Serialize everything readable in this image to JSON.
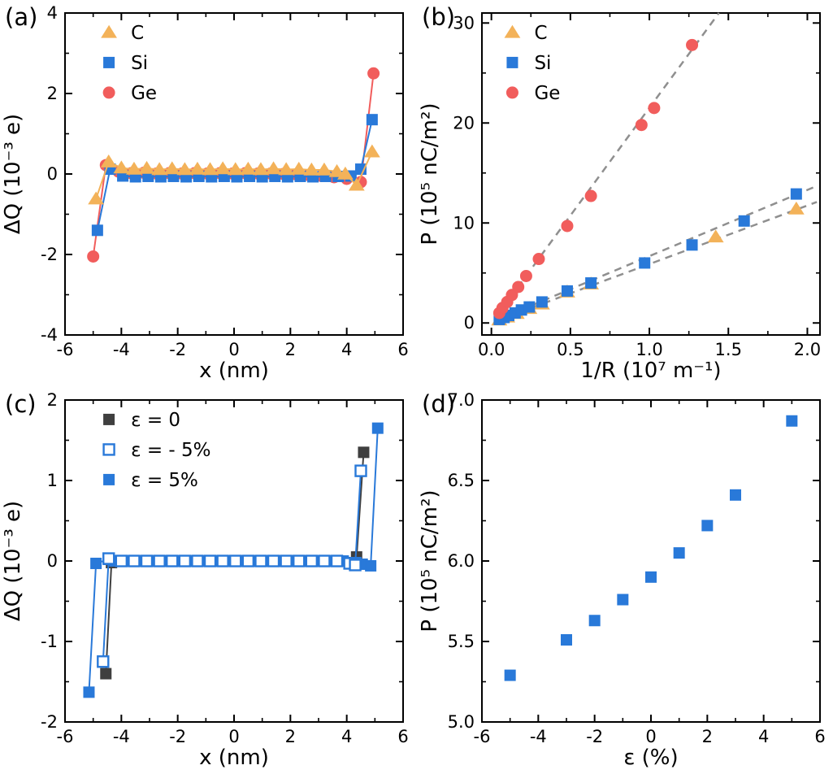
{
  "figure": {
    "background": "#ffffff"
  },
  "colors": {
    "c_orange": "#f3b259",
    "si_blue": "#2979d9",
    "ge_red": "#f15d5c",
    "eps0_dark": "#3f3f3f",
    "fit_gray": "#8f8f8f"
  },
  "chart_data": [
    {
      "id": "a",
      "panel_label": "(a)",
      "type": "scatter",
      "xlabel": "x (nm)",
      "ylabel": "ΔQ (10⁻³ e)",
      "xlim": [
        -6,
        6
      ],
      "ylim": [
        -4,
        4
      ],
      "xticks": [
        -6,
        -4,
        -2,
        0,
        2,
        4,
        6
      ],
      "xtick_labels": [
        "-6",
        "-4",
        "-2",
        "0",
        "2",
        "4",
        "6"
      ],
      "yticks": [
        -4,
        -2,
        0,
        2,
        4
      ],
      "ytick_labels": [
        "-4",
        "-2",
        "0",
        "2",
        "4"
      ],
      "x_minor_step": 1,
      "y_minor_step": 1,
      "legend": {
        "x": 0.13,
        "y": 0.02,
        "items": [
          {
            "label": "C",
            "marker": "triangle",
            "color": "#f3b259"
          },
          {
            "label": "Si",
            "marker": "square",
            "color": "#2979d9"
          },
          {
            "label": "Ge",
            "marker": "circle",
            "color": "#f15d5c"
          }
        ]
      },
      "series": [
        {
          "name": "Ge",
          "marker": "circle",
          "color": "#f15d5c",
          "line": true,
          "x": [
            -5.0,
            -4.55,
            -4.1,
            -3.65,
            -3.2,
            -2.75,
            -2.3,
            -1.85,
            -1.4,
            -0.95,
            -0.5,
            -0.05,
            0.4,
            0.85,
            1.3,
            1.75,
            2.2,
            2.65,
            3.1,
            3.55,
            4.0,
            4.5,
            4.95
          ],
          "y": [
            -2.05,
            0.22,
            0.06,
            0.02,
            0.03,
            0.01,
            0.02,
            0.01,
            0.02,
            0.01,
            0.02,
            0.01,
            0.02,
            0.01,
            0.01,
            0.0,
            -0.01,
            -0.03,
            -0.05,
            -0.08,
            -0.12,
            -0.2,
            2.5
          ]
        },
        {
          "name": "Si",
          "marker": "square",
          "color": "#2979d9",
          "line": true,
          "x": [
            -4.85,
            -4.4,
            -3.95,
            -3.5,
            -3.05,
            -2.6,
            -2.15,
            -1.7,
            -1.25,
            -0.8,
            -0.35,
            0.1,
            0.55,
            1.0,
            1.45,
            1.9,
            2.35,
            2.8,
            3.25,
            3.7,
            4.15,
            4.5,
            4.9
          ],
          "y": [
            -1.4,
            0.12,
            -0.05,
            -0.07,
            -0.06,
            -0.07,
            -0.06,
            -0.07,
            -0.06,
            -0.07,
            -0.06,
            -0.07,
            -0.06,
            -0.07,
            -0.06,
            -0.07,
            -0.06,
            -0.07,
            -0.06,
            -0.06,
            -0.05,
            0.12,
            1.35
          ]
        },
        {
          "name": "C",
          "marker": "triangle",
          "color": "#f3b259",
          "line": true,
          "x": [
            -4.9,
            -4.45,
            -4.0,
            -3.55,
            -3.1,
            -2.65,
            -2.2,
            -1.75,
            -1.3,
            -0.85,
            -0.4,
            0.05,
            0.5,
            0.95,
            1.4,
            1.85,
            2.3,
            2.75,
            3.2,
            3.65,
            3.95,
            4.35,
            4.9
          ],
          "y": [
            -0.62,
            0.3,
            0.15,
            0.12,
            0.14,
            0.11,
            0.13,
            0.11,
            0.12,
            0.11,
            0.13,
            0.11,
            0.12,
            0.11,
            0.13,
            0.11,
            0.12,
            0.1,
            0.1,
            0.06,
            0.0,
            -0.28,
            0.55
          ]
        }
      ]
    },
    {
      "id": "b",
      "panel_label": "(b)",
      "type": "scatter",
      "xlabel": "1/R (10⁷ m⁻¹)",
      "ylabel": "P (10⁵ nC/m²)",
      "xlim": [
        -0.06,
        2.08
      ],
      "ylim": [
        -1.2,
        31
      ],
      "xticks": [
        0,
        0.5,
        1,
        1.5,
        2
      ],
      "xtick_labels": [
        "0.0",
        "0.5",
        "1.0",
        "1.5",
        "2.0"
      ],
      "yticks": [
        0,
        10,
        20,
        30
      ],
      "ytick_labels": [
        "0",
        "10",
        "20",
        "30"
      ],
      "x_minor_step": 0.25,
      "y_minor_step": 5,
      "legend": {
        "x": 0.09,
        "y": 0.02,
        "items": [
          {
            "label": "C",
            "marker": "triangle",
            "color": "#f3b259"
          },
          {
            "label": "Si",
            "marker": "square",
            "color": "#2979d9"
          },
          {
            "label": "Ge",
            "marker": "circle",
            "color": "#f15d5c"
          }
        ]
      },
      "fit_lines": [
        {
          "x1": 0.02,
          "y1": 0.4,
          "x2": 1.44,
          "y2": 31.0,
          "color": "#8f8f8f"
        },
        {
          "x1": 0.02,
          "y1": 0.2,
          "x2": 2.06,
          "y2": 13.7,
          "color": "#8f8f8f"
        },
        {
          "x1": 0.02,
          "y1": 0.15,
          "x2": 2.06,
          "y2": 12.1,
          "color": "#8f8f8f"
        }
      ],
      "series": [
        {
          "name": "C",
          "marker": "triangle",
          "color": "#f3b259",
          "line": false,
          "x": [
            0.05,
            0.1,
            0.16,
            0.24,
            0.32,
            0.48,
            0.63,
            1.42,
            1.93
          ],
          "y": [
            0.3,
            0.6,
            0.95,
            1.45,
            1.9,
            3.1,
            3.9,
            8.6,
            11.4
          ]
        },
        {
          "name": "Si",
          "marker": "square",
          "color": "#2979d9",
          "line": false,
          "x": [
            0.05,
            0.08,
            0.11,
            0.15,
            0.19,
            0.24,
            0.32,
            0.48,
            0.63,
            0.97,
            1.27,
            1.6,
            1.93
          ],
          "y": [
            0.35,
            0.55,
            0.75,
            1.0,
            1.3,
            1.6,
            2.1,
            3.2,
            4.0,
            6.0,
            7.8,
            10.2,
            12.9
          ]
        },
        {
          "name": "Ge",
          "marker": "circle",
          "color": "#f15d5c",
          "line": false,
          "x": [
            0.05,
            0.07,
            0.1,
            0.13,
            0.17,
            0.22,
            0.3,
            0.48,
            0.63,
            0.95,
            1.03,
            1.27
          ],
          "y": [
            1.0,
            1.5,
            2.1,
            2.8,
            3.6,
            4.7,
            6.4,
            9.7,
            12.7,
            19.8,
            21.5,
            27.8
          ]
        }
      ]
    },
    {
      "id": "c",
      "panel_label": "(c)",
      "type": "scatter",
      "xlabel": "x (nm)",
      "ylabel": "ΔQ (10⁻³ e)",
      "xlim": [
        -6,
        6
      ],
      "ylim": [
        -2,
        2
      ],
      "xticks": [
        -6,
        -4,
        -2,
        0,
        2,
        4,
        6
      ],
      "xtick_labels": [
        "-6",
        "-4",
        "-2",
        "0",
        "2",
        "4",
        "6"
      ],
      "yticks": [
        -2,
        -1,
        0,
        1,
        2
      ],
      "ytick_labels": [
        "-2",
        "-1",
        "0",
        "1",
        "2"
      ],
      "x_minor_step": 1,
      "y_minor_step": 0.5,
      "legend": {
        "x": 0.13,
        "y": 0.02,
        "items": [
          {
            "label": "ε = 0",
            "marker": "square",
            "color": "#3f3f3f"
          },
          {
            "label": "ε = - 5%",
            "marker": "square",
            "color": "#2979d9",
            "open": true
          },
          {
            "label": "ε = 5%",
            "marker": "square",
            "color": "#2979d9"
          }
        ]
      },
      "series": [
        {
          "name": "ε = 0",
          "marker": "square",
          "color": "#3f3f3f",
          "line": true,
          "x": [
            -4.55,
            -4.35,
            -3.9,
            -3.45,
            -3.0,
            -2.55,
            -2.1,
            -1.65,
            -1.2,
            -0.75,
            -0.3,
            0.15,
            0.6,
            1.05,
            1.5,
            1.95,
            2.4,
            2.85,
            3.3,
            3.75,
            4.15,
            4.35,
            4.6
          ],
          "y": [
            -1.4,
            -0.02,
            0,
            0,
            0,
            0,
            0,
            0,
            0,
            0,
            0,
            0,
            0,
            0,
            0,
            0,
            0,
            0,
            0,
            0,
            -0.02,
            0.05,
            1.35
          ]
        },
        {
          "name": "ε = 5%",
          "marker": "square",
          "color": "#2979d9",
          "line": true,
          "x": [
            -5.15,
            -4.9,
            -4.45,
            -4.225,
            -3.775,
            -3.325,
            -2.875,
            -2.425,
            -1.975,
            -1.525,
            -1.075,
            -0.625,
            -0.175,
            0.275,
            0.725,
            1.175,
            1.625,
            2.075,
            2.525,
            2.975,
            3.425,
            3.875,
            4.325,
            4.55,
            4.85,
            5.1
          ],
          "y": [
            -1.63,
            -0.03,
            0.02,
            0,
            0,
            0,
            0,
            0,
            0,
            0,
            0,
            0,
            0,
            0,
            0,
            0,
            0,
            0,
            0,
            0,
            0,
            0,
            -0.02,
            -0.04,
            -0.06,
            1.65
          ]
        },
        {
          "name": "ε = - 5%",
          "marker": "square",
          "color": "#2979d9",
          "open": true,
          "line": true,
          "x": [
            -4.65,
            -4.45,
            -4.0,
            -3.55,
            -3.1,
            -2.65,
            -2.2,
            -1.75,
            -1.3,
            -0.85,
            -0.4,
            0.05,
            0.5,
            0.95,
            1.4,
            1.85,
            2.3,
            2.75,
            3.2,
            3.65,
            4.1,
            4.3,
            4.5
          ],
          "y": [
            -1.25,
            0.03,
            0,
            0,
            0,
            0,
            0,
            0,
            0,
            0,
            0,
            0,
            0,
            0,
            0,
            0,
            0,
            0,
            0,
            0,
            -0.03,
            -0.05,
            1.12
          ]
        }
      ]
    },
    {
      "id": "d",
      "panel_label": "(d)",
      "type": "scatter",
      "xlabel": "ε (%)",
      "ylabel": "P (10⁵ nC/m²)",
      "xlim": [
        -6,
        6
      ],
      "ylim": [
        5.0,
        7.0
      ],
      "xticks": [
        -6,
        -4,
        -2,
        0,
        2,
        4,
        6
      ],
      "xtick_labels": [
        "-6",
        "-4",
        "-2",
        "0",
        "2",
        "4",
        "6"
      ],
      "yticks": [
        5.0,
        5.5,
        6.0,
        6.5,
        7.0
      ],
      "ytick_labels": [
        "5.0",
        "5.5",
        "6.0",
        "6.5",
        "7.0"
      ],
      "x_minor_step": 1,
      "y_minor_step": 0.25,
      "series": [
        {
          "name": "P",
          "marker": "square",
          "color": "#2979d9",
          "line": false,
          "x": [
            -5,
            -3,
            -2,
            -1,
            0,
            1,
            2,
            3,
            5
          ],
          "y": [
            5.29,
            5.51,
            5.63,
            5.76,
            5.9,
            6.05,
            6.22,
            6.41,
            6.87
          ]
        }
      ]
    }
  ]
}
